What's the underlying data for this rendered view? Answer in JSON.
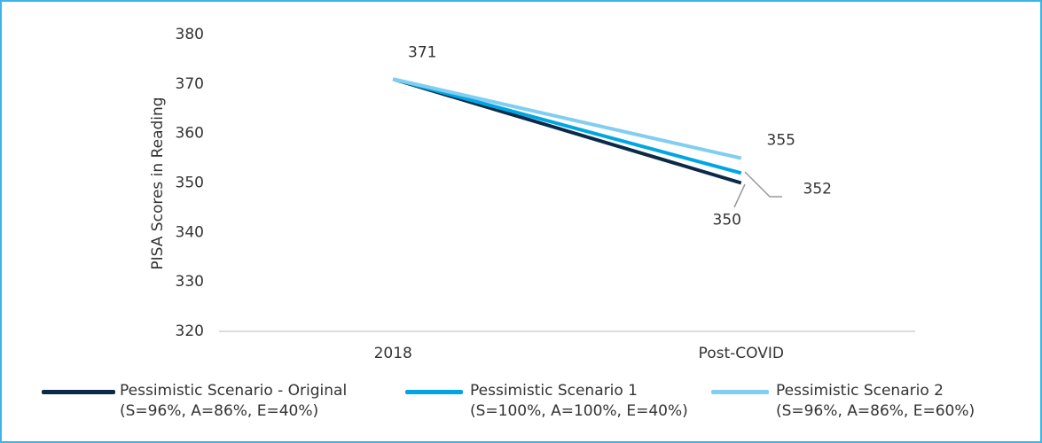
{
  "chart_data": {
    "type": "line",
    "y_label": "PISA Scores in Reading",
    "categories": [
      "2018",
      "Post-COVID"
    ],
    "series": [
      {
        "name": "Pessimistic Scenario - Original\n(S=96%, A=86%, E=40%)",
        "color": "#0b2a4a",
        "values": [
          371,
          350
        ]
      },
      {
        "name": "Pessimistic Scenario 1\n(S=100%, A=100%, E=40%)",
        "color": "#00a6e2",
        "values": [
          371,
          352
        ]
      },
      {
        "name": "Pessimistic Scenario 2\n(S=96%, A=86%, E=60%)",
        "color": "#80cef1",
        "values": [
          371,
          355
        ]
      }
    ],
    "ylim": [
      320,
      380
    ],
    "yticks": [
      320,
      330,
      340,
      350,
      360,
      370,
      380
    ],
    "grid": false
  }
}
